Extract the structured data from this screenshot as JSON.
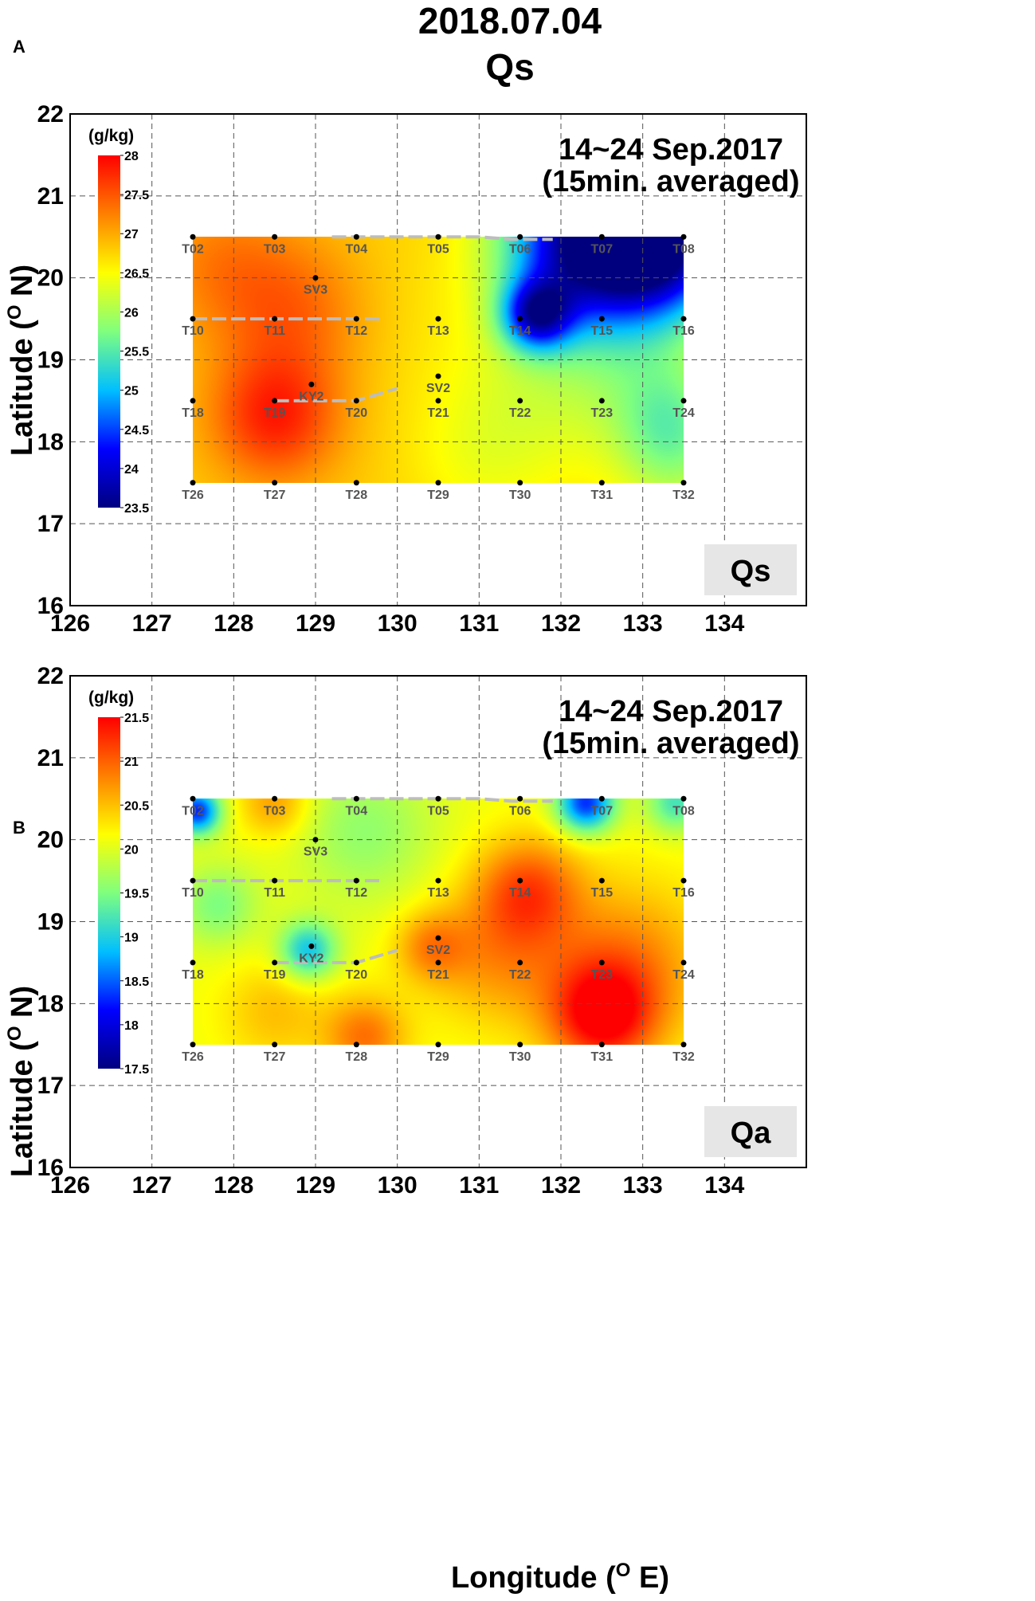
{
  "figure": {
    "title_line1": "2018.07.04",
    "title_line2": "Qs",
    "xlabel": "Longitude (",
    "xlabel_sup": "O",
    "xlabel_end": " E)",
    "ylabel": "Latitude (",
    "ylabel_sup": "O",
    "ylabel_end": " N)",
    "colors": {
      "colormap": [
        "#00007f",
        "#0000ff",
        "#00bfff",
        "#7fff7f",
        "#ffff00",
        "#ff8000",
        "#ff0000"
      ],
      "station_line": "#bdbdbd",
      "box_fill": "#e6e6e6"
    }
  },
  "chart_data": [
    {
      "type": "heatmap",
      "panel": "A",
      "label_box": "Qs",
      "period_line1": "14~24 Sep.2017",
      "period_line2": "(15min. averaged)",
      "colorbar": {
        "unit": "(g/kg)",
        "min": 23.5,
        "max": 28,
        "ticks": [
          "28",
          "27.5",
          "27",
          "26.5",
          "26",
          "25.5",
          "25",
          "24.5",
          "24",
          "23.5"
        ]
      },
      "xlim": [
        126,
        135
      ],
      "ylim": [
        16,
        22
      ],
      "xticks": [
        "126",
        "127",
        "128",
        "129",
        "130",
        "131",
        "132",
        "133",
        "134"
      ],
      "yticks": [
        "16",
        "17",
        "18",
        "19",
        "20",
        "21",
        "22"
      ],
      "grid": true,
      "field_extent": {
        "lon": [
          127.5,
          133.5
        ],
        "lat": [
          17.5,
          20.5
        ]
      },
      "background_value": 26.8,
      "features": [
        {
          "lon": 128.5,
          "lat": 18.3,
          "value": 27.8,
          "spread": 0.55
        },
        {
          "lon": 128.7,
          "lat": 19.6,
          "value": 27.4,
          "spread": 0.65
        },
        {
          "lon": 127.8,
          "lat": 20.2,
          "value": 27.2,
          "spread": 0.6
        },
        {
          "lon": 130.5,
          "lat": 19.6,
          "value": 26.7,
          "spread": 0.9
        },
        {
          "lon": 131.7,
          "lat": 19.55,
          "value": 24.6,
          "spread": 0.3
        },
        {
          "lon": 132.3,
          "lat": 20.5,
          "value": 23.8,
          "spread": 0.7
        },
        {
          "lon": 133.3,
          "lat": 20.45,
          "value": 24.2,
          "spread": 0.6
        },
        {
          "lon": 132.8,
          "lat": 19.5,
          "value": 26.1,
          "spread": 0.8
        },
        {
          "lon": 131.6,
          "lat": 18.4,
          "value": 26.4,
          "spread": 0.8
        },
        {
          "lon": 133.3,
          "lat": 18.3,
          "value": 26.0,
          "spread": 0.5
        },
        {
          "lon": 133.4,
          "lat": 17.7,
          "value": 26.3,
          "spread": 0.5
        },
        {
          "lon": 130.9,
          "lat": 17.7,
          "value": 26.6,
          "spread": 0.6
        }
      ]
    },
    {
      "type": "heatmap",
      "panel": "B",
      "label_box": "Qa",
      "period_line1": "14~24 Sep.2017",
      "period_line2": "(15min. averaged)",
      "colorbar": {
        "unit": "(g/kg)",
        "min": 17.5,
        "max": 21.5,
        "ticks": [
          "21.5",
          "21",
          "20.5",
          "20",
          "19.5",
          "19",
          "18.5",
          "18",
          "17.5"
        ]
      },
      "xlim": [
        126,
        135
      ],
      "ylim": [
        16,
        22
      ],
      "xticks": [
        "126",
        "127",
        "128",
        "129",
        "130",
        "131",
        "132",
        "133",
        "134"
      ],
      "yticks": [
        "16",
        "17",
        "18",
        "19",
        "20",
        "21",
        "22"
      ],
      "grid": true,
      "field_extent": {
        "lon": [
          127.5,
          133.5
        ],
        "lat": [
          17.5,
          20.5
        ]
      },
      "background_value": 20.1,
      "features": [
        {
          "lon": 127.55,
          "lat": 20.35,
          "value": 18.3,
          "spread": 0.2
        },
        {
          "lon": 132.3,
          "lat": 20.45,
          "value": 18.3,
          "spread": 0.25
        },
        {
          "lon": 133.4,
          "lat": 20.45,
          "value": 19.2,
          "spread": 0.25
        },
        {
          "lon": 128.9,
          "lat": 18.65,
          "value": 18.9,
          "spread": 0.25
        },
        {
          "lon": 127.8,
          "lat": 19.2,
          "value": 19.5,
          "spread": 0.35
        },
        {
          "lon": 129.6,
          "lat": 20.1,
          "value": 19.6,
          "spread": 0.6
        },
        {
          "lon": 131.6,
          "lat": 19.4,
          "value": 21.0,
          "spread": 0.45
        },
        {
          "lon": 132.5,
          "lat": 17.85,
          "value": 21.4,
          "spread": 0.45
        },
        {
          "lon": 132.8,
          "lat": 18.5,
          "value": 20.8,
          "spread": 0.7
        },
        {
          "lon": 131.2,
          "lat": 18.6,
          "value": 20.7,
          "spread": 0.6
        },
        {
          "lon": 129.6,
          "lat": 17.6,
          "value": 20.9,
          "spread": 0.35
        },
        {
          "lon": 128.5,
          "lat": 17.9,
          "value": 20.5,
          "spread": 0.45
        },
        {
          "lon": 130.4,
          "lat": 18.7,
          "value": 20.7,
          "spread": 0.3
        },
        {
          "lon": 128.5,
          "lat": 20.45,
          "value": 20.7,
          "spread": 0.3
        }
      ]
    }
  ],
  "stations": [
    {
      "name": "T02",
      "lon": 127.5,
      "lat": 20.5
    },
    {
      "name": "T03",
      "lon": 128.5,
      "lat": 20.5
    },
    {
      "name": "T04",
      "lon": 129.5,
      "lat": 20.5
    },
    {
      "name": "T05",
      "lon": 130.5,
      "lat": 20.5
    },
    {
      "name": "T06",
      "lon": 131.5,
      "lat": 20.5
    },
    {
      "name": "T07",
      "lon": 132.5,
      "lat": 20.5
    },
    {
      "name": "T08",
      "lon": 133.5,
      "lat": 20.5
    },
    {
      "name": "T10",
      "lon": 127.5,
      "lat": 19.5
    },
    {
      "name": "T11",
      "lon": 128.5,
      "lat": 19.5
    },
    {
      "name": "T12",
      "lon": 129.5,
      "lat": 19.5
    },
    {
      "name": "T13",
      "lon": 130.5,
      "lat": 19.5
    },
    {
      "name": "T14",
      "lon": 131.5,
      "lat": 19.5
    },
    {
      "name": "T15",
      "lon": 132.5,
      "lat": 19.5
    },
    {
      "name": "T16",
      "lon": 133.5,
      "lat": 19.5
    },
    {
      "name": "T18",
      "lon": 127.5,
      "lat": 18.5
    },
    {
      "name": "T19",
      "lon": 128.5,
      "lat": 18.5
    },
    {
      "name": "T20",
      "lon": 129.5,
      "lat": 18.5
    },
    {
      "name": "T21",
      "lon": 130.5,
      "lat": 18.5
    },
    {
      "name": "T22",
      "lon": 131.5,
      "lat": 18.5
    },
    {
      "name": "T23",
      "lon": 132.5,
      "lat": 18.5
    },
    {
      "name": "T24",
      "lon": 133.5,
      "lat": 18.5
    },
    {
      "name": "T26",
      "lon": 127.5,
      "lat": 17.5
    },
    {
      "name": "T27",
      "lon": 128.5,
      "lat": 17.5
    },
    {
      "name": "T28",
      "lon": 129.5,
      "lat": 17.5
    },
    {
      "name": "T29",
      "lon": 130.5,
      "lat": 17.5
    },
    {
      "name": "T30",
      "lon": 131.5,
      "lat": 17.5
    },
    {
      "name": "T31",
      "lon": 132.5,
      "lat": 17.5
    },
    {
      "name": "T32",
      "lon": 133.5,
      "lat": 17.5
    },
    {
      "name": "SV3",
      "lon": 129.0,
      "lat": 20.0
    },
    {
      "name": "SV2",
      "lon": 130.5,
      "lat": 18.8
    },
    {
      "name": "KY2",
      "lon": 128.95,
      "lat": 18.7
    }
  ],
  "ship_tracks": [
    [
      [
        129.2,
        20.5
      ],
      [
        131.0,
        20.5
      ],
      [
        131.4,
        20.47
      ],
      [
        131.9,
        20.47
      ]
    ],
    [
      [
        127.5,
        19.5
      ],
      [
        129.8,
        19.5
      ]
    ],
    [
      [
        128.5,
        18.5
      ],
      [
        129.5,
        18.5
      ],
      [
        130.0,
        18.65
      ]
    ]
  ]
}
